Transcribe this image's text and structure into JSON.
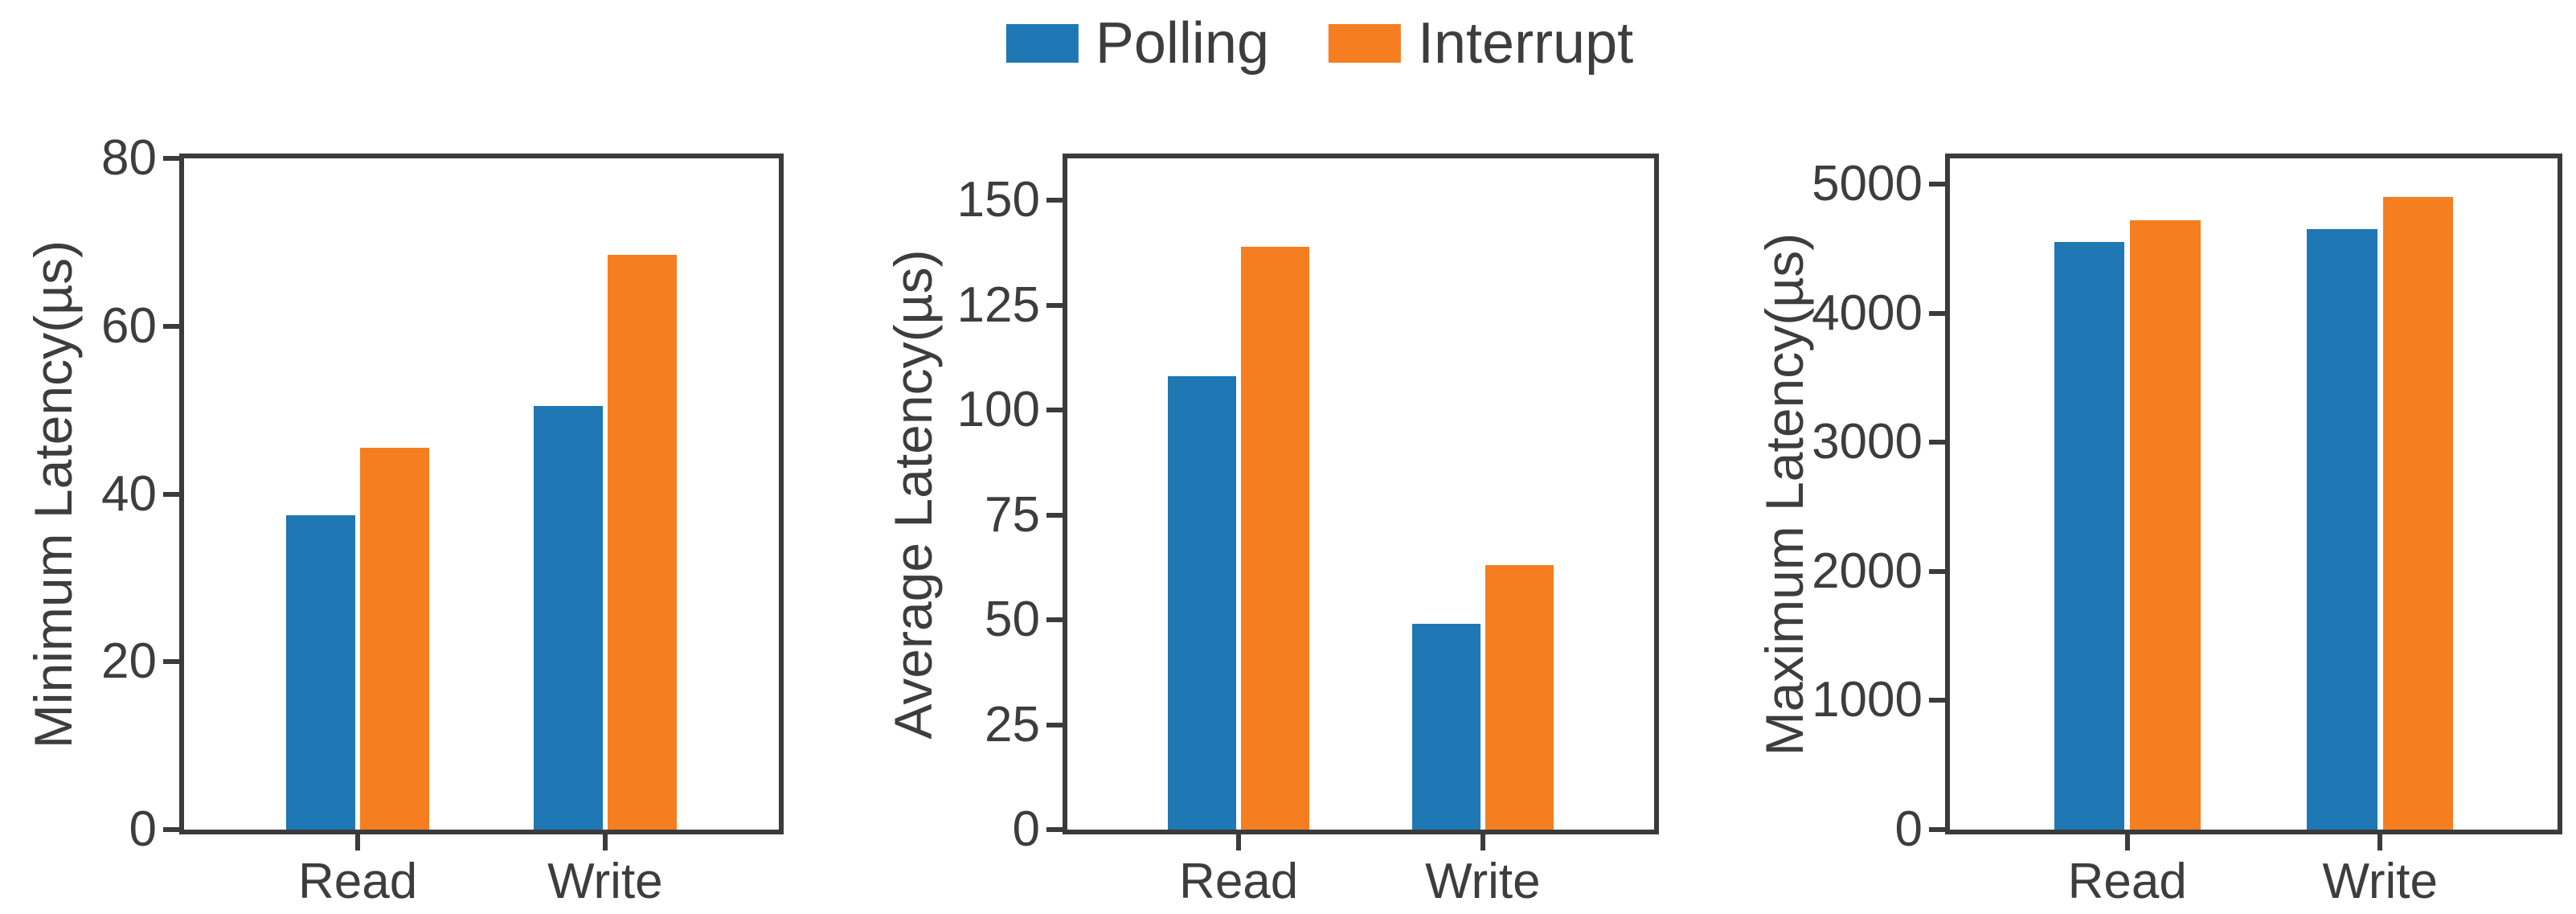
{
  "figure": {
    "background": "#ffffff"
  },
  "colors": {
    "axis": "#3b3b3b",
    "text": "#3d3d3d",
    "polling": "#1f77b4",
    "interrupt": "#f57e20"
  },
  "legend": {
    "position": "top-center",
    "items": [
      {
        "label": "Polling",
        "color": "#1f77b4"
      },
      {
        "label": "Interrupt",
        "color": "#f57e20"
      }
    ]
  },
  "chart_data": [
    {
      "type": "bar",
      "title": "",
      "ylabel": "Minimum Latency(µs)",
      "xlabel": "",
      "categories": [
        "Read",
        "Write"
      ],
      "series": [
        {
          "name": "Polling",
          "values": [
            37.5,
            50.5
          ]
        },
        {
          "name": "Interrupt",
          "values": [
            45.5,
            68.5
          ]
        }
      ],
      "ylim": [
        0,
        80
      ],
      "yticks": [
        0,
        20,
        40,
        60,
        80
      ],
      "grid": false
    },
    {
      "type": "bar",
      "title": "",
      "ylabel": "Average Latency(µs)",
      "xlabel": "",
      "categories": [
        "Read",
        "Write"
      ],
      "series": [
        {
          "name": "Polling",
          "values": [
            108,
            49
          ]
        },
        {
          "name": "Interrupt",
          "values": [
            139,
            63
          ]
        }
      ],
      "ylim": [
        0,
        160
      ],
      "yticks": [
        0,
        25,
        50,
        75,
        100,
        125,
        150
      ],
      "grid": false
    },
    {
      "type": "bar",
      "title": "",
      "ylabel": "Maximum Latency(µs)",
      "xlabel": "",
      "categories": [
        "Read",
        "Write"
      ],
      "series": [
        {
          "name": "Polling",
          "values": [
            4550,
            4650
          ]
        },
        {
          "name": "Interrupt",
          "values": [
            4720,
            4900
          ]
        }
      ],
      "ylim": [
        0,
        5200
      ],
      "yticks": [
        0,
        1000,
        2000,
        3000,
        4000,
        5000
      ],
      "grid": false
    }
  ]
}
